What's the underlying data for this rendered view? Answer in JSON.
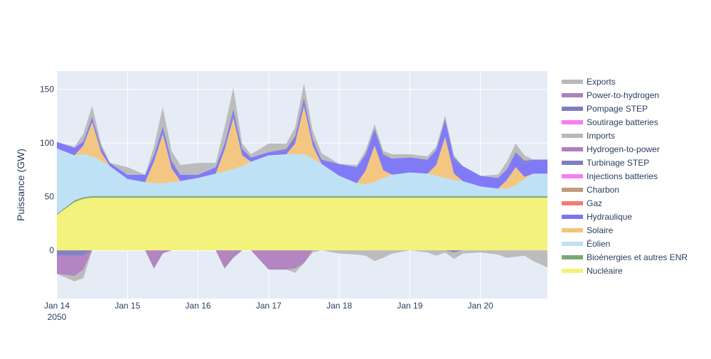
{
  "chart_data": {
    "type": "area",
    "ylabel": "Puissance (GW)",
    "xlabel": "",
    "x_range_days": [
      14,
      20.95
    ],
    "ylim": [
      -45,
      167
    ],
    "grid": true,
    "legend_position": "right",
    "x_ticks": [
      {
        "day": 14,
        "label": "Jan 14",
        "sublabel": "2050"
      },
      {
        "day": 15,
        "label": "Jan 15",
        "sublabel": ""
      },
      {
        "day": 16,
        "label": "Jan 16",
        "sublabel": ""
      },
      {
        "day": 17,
        "label": "Jan 17",
        "sublabel": ""
      },
      {
        "day": 18,
        "label": "Jan 18",
        "sublabel": ""
      },
      {
        "day": 19,
        "label": "Jan 19",
        "sublabel": ""
      },
      {
        "day": 20,
        "label": "Jan 20",
        "sublabel": ""
      }
    ],
    "y_ticks": [
      {
        "value": 0,
        "label": "0"
      },
      {
        "value": 50,
        "label": "50"
      },
      {
        "value": 100,
        "label": "100"
      },
      {
        "value": 150,
        "label": "150"
      }
    ],
    "x_days": [
      14,
      14.25,
      14.375,
      14.5,
      14.625,
      14.75,
      15,
      15.25,
      15.375,
      15.5,
      15.625,
      15.75,
      16,
      16.25,
      16.375,
      16.5,
      16.625,
      16.75,
      17,
      17.25,
      17.375,
      17.5,
      17.625,
      17.75,
      18,
      18.25,
      18.375,
      18.5,
      18.625,
      18.75,
      19,
      19.25,
      19.375,
      19.5,
      19.625,
      19.75,
      20,
      20.25,
      20.375,
      20.5,
      20.625,
      20.75,
      20.95
    ],
    "positive_series": [
      {
        "name": "Nucléaire",
        "color": "#f2f276",
        "values": [
          33,
          45,
          48,
          49,
          49,
          49,
          49,
          49,
          49,
          49,
          49,
          49,
          49,
          49,
          49,
          49,
          49,
          49,
          49,
          49,
          49,
          49,
          49,
          49,
          49,
          49,
          49,
          49,
          49,
          49,
          49,
          49,
          49,
          49,
          49,
          49,
          49,
          49,
          49,
          49,
          49,
          49,
          49
        ]
      },
      {
        "name": "Bioénergies et autres ENR",
        "color": "#7aa874",
        "values": [
          1,
          1.5,
          1.5,
          1.5,
          1.5,
          1.5,
          1.5,
          1.5,
          1.5,
          1.5,
          1.5,
          1.5,
          1.5,
          1.5,
          1.5,
          1.5,
          1.5,
          1.5,
          1.5,
          1.5,
          1.5,
          1.5,
          1.5,
          1.5,
          1.5,
          1.5,
          1.5,
          1.5,
          1.5,
          1.5,
          1.5,
          1.5,
          1.5,
          1.5,
          1.5,
          1.5,
          1.5,
          1.5,
          1.5,
          1.5,
          1.5,
          1.5,
          1.5
        ]
      },
      {
        "name": "Éolien",
        "color": "#bde0f6",
        "values": [
          61,
          42,
          40,
          37,
          33,
          28,
          16,
          13,
          12,
          12,
          13,
          14,
          17,
          21,
          23,
          25,
          28,
          32,
          38,
          39,
          39,
          39,
          35,
          30,
          19,
          12,
          11,
          13,
          17,
          20,
          22,
          21,
          19,
          17,
          15,
          14,
          9,
          7,
          7,
          10,
          16,
          21,
          21
        ]
      },
      {
        "name": "Solaire",
        "color": "#f3c57a",
        "values": [
          0,
          0,
          8,
          32,
          8,
          0,
          0,
          0,
          20,
          46,
          13,
          0,
          0,
          0,
          20,
          48,
          10,
          0,
          0,
          0,
          10,
          45,
          12,
          0,
          0,
          0,
          13,
          34,
          7,
          0,
          0,
          0,
          10,
          38,
          6,
          0,
          0,
          0,
          8,
          17,
          2,
          0,
          0
        ]
      },
      {
        "name": "Hydraulique",
        "color": "#7b74f7",
        "values": [
          6,
          7,
          4,
          3,
          3,
          3,
          4,
          7,
          6,
          5,
          5,
          6,
          3,
          6,
          6,
          5,
          4,
          4,
          3,
          3,
          4,
          5,
          4,
          4,
          11,
          15,
          15,
          14,
          13,
          15,
          14,
          13,
          14,
          15,
          13,
          14,
          10,
          10,
          10,
          12,
          12,
          13,
          13
        ]
      },
      {
        "name": "Charbon",
        "color": "#c49a7e",
        "values": [
          0,
          0,
          0,
          0,
          0,
          0,
          0,
          0,
          0,
          0,
          0,
          0,
          0,
          0,
          0,
          0,
          0,
          0,
          0,
          0,
          0,
          0,
          0,
          0,
          0,
          0,
          0,
          0,
          0,
          0,
          0,
          0,
          0,
          0,
          0,
          0,
          0,
          0,
          0,
          0,
          0,
          0,
          0
        ]
      },
      {
        "name": "Gaz",
        "color": "#f47c74",
        "values": [
          0,
          0,
          0,
          0,
          0,
          0,
          0,
          0,
          0,
          0,
          0,
          0,
          0,
          0,
          0,
          0,
          0,
          0,
          0,
          0,
          0,
          0,
          0,
          0,
          0,
          0,
          0,
          0,
          0,
          0,
          0,
          0,
          0,
          0,
          0,
          0,
          0,
          0,
          0,
          0,
          0,
          0,
          0
        ]
      },
      {
        "name": "Injections batteries",
        "color": "#f77ef1",
        "values": [
          0,
          0,
          0,
          0,
          0,
          0,
          0,
          0,
          0,
          0,
          0,
          0,
          0,
          0,
          0,
          0,
          0,
          0,
          0,
          0,
          0,
          0,
          0,
          0,
          0,
          0,
          0,
          0,
          0,
          0,
          0,
          0,
          0,
          0,
          0,
          0,
          0,
          0,
          0,
          0,
          0,
          0,
          0
        ]
      },
      {
        "name": "Turbinage STEP",
        "color": "#7f7cc0",
        "values": [
          0,
          0,
          0,
          2,
          2,
          0,
          0,
          0,
          0,
          2,
          2,
          0,
          0,
          0,
          0,
          3,
          2,
          0,
          0,
          2,
          3,
          3,
          2,
          0,
          0,
          0,
          0,
          2,
          2,
          0,
          0,
          0,
          0,
          2,
          2,
          0,
          0,
          0,
          0,
          2,
          3,
          0,
          0
        ]
      },
      {
        "name": "Hydrogen-to-power",
        "color": "#b07fbe",
        "values": [
          0,
          0,
          0,
          0,
          0,
          0,
          0,
          0,
          0,
          0,
          0,
          0,
          0,
          0,
          0,
          0,
          0,
          0,
          0,
          0,
          0,
          0,
          0,
          0,
          0,
          0,
          0,
          0,
          0,
          0,
          0,
          0,
          0,
          0,
          0,
          0,
          0,
          0,
          0,
          0,
          0,
          0,
          0
        ]
      },
      {
        "name": "Imports",
        "color": "#b9b9b9",
        "values": [
          0,
          1,
          7,
          10,
          3,
          0,
          7,
          0,
          8,
          18,
          9,
          9,
          11,
          4,
          15,
          20,
          5,
          3,
          8,
          5,
          8,
          13,
          8,
          6,
          0,
          2,
          4,
          4,
          3,
          4,
          3,
          3,
          3,
          3,
          2,
          0,
          0,
          3,
          7,
          8,
          5,
          0,
          0
        ]
      }
    ],
    "negative_series": [
      {
        "name": "Soutirage batteries",
        "color": "#f77ef1",
        "values": [
          0,
          0,
          0,
          0,
          0,
          0,
          0,
          0,
          0,
          0,
          0,
          0,
          0,
          0,
          0,
          0,
          0,
          0,
          0,
          0,
          0,
          0,
          0,
          0,
          0,
          0,
          0,
          0,
          0,
          0,
          0,
          0,
          0,
          0,
          0,
          0,
          0,
          0,
          0,
          0,
          0,
          0,
          0
        ]
      },
      {
        "name": "Pompage STEP",
        "color": "#7f7cc0",
        "values": [
          5,
          5,
          5,
          0,
          0,
          0,
          0,
          0,
          0,
          0,
          0,
          0,
          0,
          0,
          0,
          0,
          0,
          0,
          0,
          0,
          0,
          0,
          0,
          0,
          0,
          0,
          0,
          0,
          0,
          0,
          0,
          0,
          0,
          0,
          2,
          0,
          0,
          0,
          0,
          0,
          0,
          0,
          0
        ]
      },
      {
        "name": "Power-to-hydrogen",
        "color": "#b07fbe",
        "values": [
          17,
          19,
          13,
          0,
          0,
          0,
          0,
          0,
          17,
          3,
          0,
          0,
          0,
          0,
          17,
          7,
          0,
          0,
          18,
          18,
          17,
          12,
          0,
          0,
          0,
          0,
          0,
          0,
          0,
          0,
          0,
          0,
          0,
          0,
          0,
          0,
          0,
          0,
          0,
          0,
          0,
          0,
          0
        ]
      },
      {
        "name": "Exports",
        "color": "#b9b9b9",
        "values": [
          0,
          5,
          8,
          0,
          0,
          0,
          0,
          0,
          0,
          0,
          0,
          0,
          0,
          0,
          0,
          0,
          0,
          0,
          0,
          0,
          4,
          0,
          2,
          0,
          3,
          4,
          5,
          10,
          7,
          3,
          0,
          2,
          5,
          2,
          6,
          3,
          2,
          4,
          7,
          6,
          5,
          10,
          16
        ]
      }
    ],
    "legend_order": [
      "Exports",
      "Power-to-hydrogen",
      "Pompage STEP",
      "Soutirage batteries",
      "Imports",
      "Hydrogen-to-power",
      "Turbinage STEP",
      "Injections batteries",
      "Charbon",
      "Gaz",
      "Hydraulique",
      "Solaire",
      "Éolien",
      "Bioénergies et autres ENR",
      "Nucléaire"
    ]
  }
}
